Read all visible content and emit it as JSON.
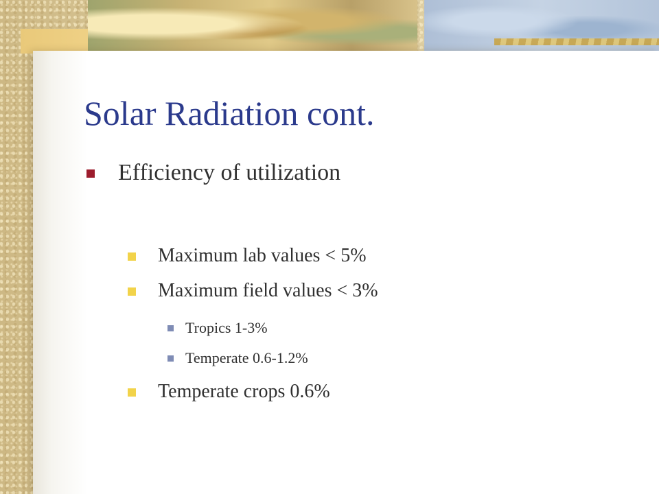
{
  "slide": {
    "title": "Solar Radiation cont.",
    "bullets": [
      {
        "text": "Efficiency of utilization",
        "level": 1
      },
      {
        "text": "Maximum lab values < 5%",
        "level": 2
      },
      {
        "text": "Maximum field values < 3%",
        "level": 2
      },
      {
        "text": "Tropics 1-3%",
        "level": 3
      },
      {
        "text": "Temperate 0.6-1.2%",
        "level": 3
      },
      {
        "text": "Temperate crops 0.6%",
        "level": 2
      }
    ]
  },
  "theme": {
    "title_color": "#2b3a8c",
    "body_text_color": "#303030",
    "bullet_level1_color": "#9c1c2c",
    "bullet_level2_color": "#f2d34a",
    "bullet_level3_color": "#7f8cb5"
  }
}
